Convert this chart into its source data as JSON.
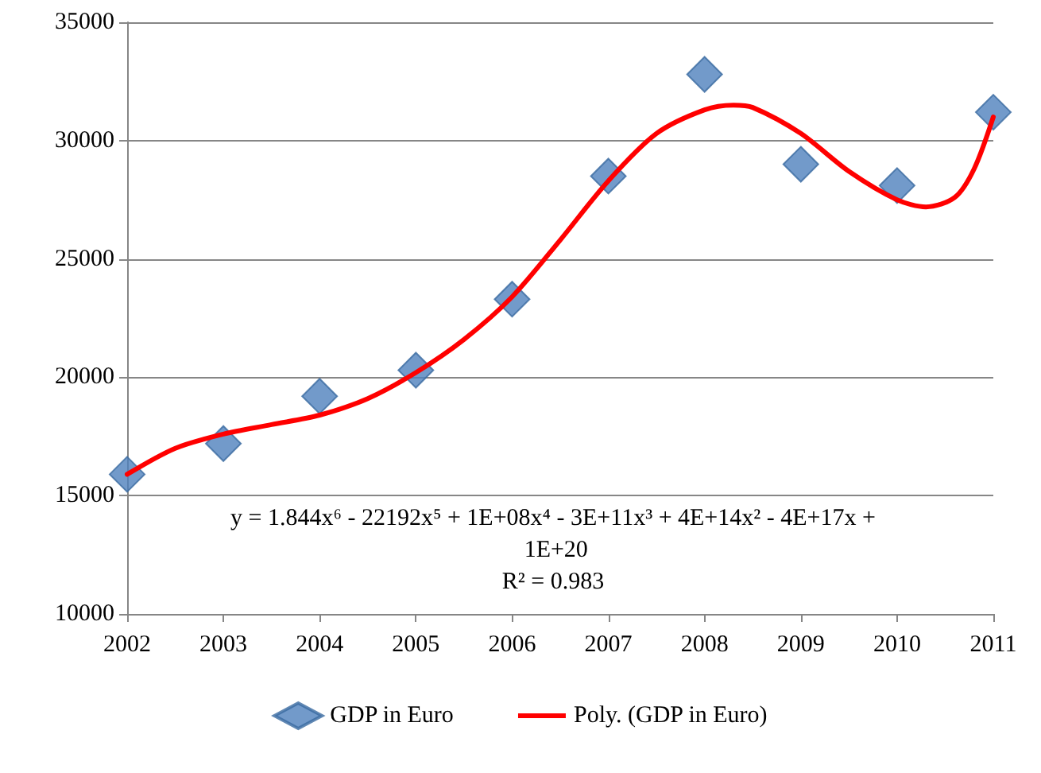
{
  "chart_data": {
    "type": "scatter",
    "xlim": [
      2002,
      2011
    ],
    "xticks": [
      2002,
      2003,
      2004,
      2005,
      2006,
      2007,
      2008,
      2009,
      2010,
      2011
    ],
    "ylim": [
      10000,
      35000
    ],
    "yticks": [
      10000,
      15000,
      20000,
      25000,
      30000,
      35000
    ],
    "grid": "y",
    "legend": "bottom",
    "series": [
      {
        "name": "GDP in Euro",
        "marker": "diamond",
        "color": "#4f81bd",
        "x": [
          2002,
          2003,
          2004,
          2005,
          2006,
          2007,
          2008,
          2009,
          2010,
          2011
        ],
        "values": [
          15900,
          17200,
          19200,
          20300,
          23300,
          28500,
          32800,
          29000,
          28100,
          31200
        ]
      },
      {
        "name": "Poly. (GDP in Euro)",
        "type": "line",
        "marker": "none",
        "line_style": "solid",
        "color": "#ff0000",
        "x": [
          2002,
          2002.5,
          2003,
          2003.5,
          2004,
          2004.5,
          2005,
          2005.5,
          2006,
          2006.5,
          2007,
          2007.5,
          2008,
          2008.3,
          2008.5,
          2009,
          2009.5,
          2010,
          2010.3,
          2010.6,
          2010.8,
          2011
        ],
        "values": [
          15900,
          17000,
          17600,
          18000,
          18400,
          19100,
          20200,
          21600,
          23400,
          25800,
          28300,
          30300,
          31300,
          31500,
          31400,
          30300,
          28700,
          27500,
          27200,
          27600,
          28800,
          31000
        ]
      }
    ],
    "annotations": [
      "y = 1.844x⁶ - 22192x⁵ + 1E+08x⁴ - 3E+11x³ + 4E+14x² - 4E+17x + 1E+20",
      "R² = 0.983"
    ]
  }
}
